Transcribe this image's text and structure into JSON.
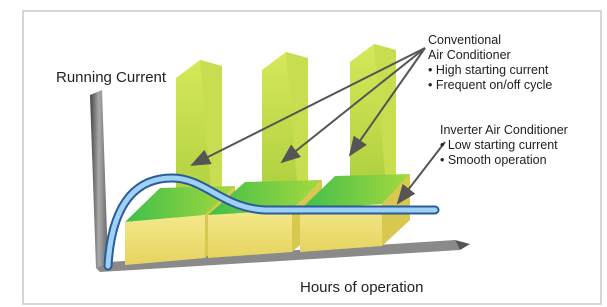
{
  "labels": {
    "y_axis": "Running Current",
    "x_axis": "Hours of operation"
  },
  "conventional": {
    "title": [
      "Conventional",
      "Air Conditioner"
    ],
    "bullets": [
      "• High starting current",
      "• Frequent on/off cycle"
    ]
  },
  "inverter": {
    "title": "Inverter Air Conditioner",
    "bullets": [
      "• Low starting current",
      "• Smooth operation"
    ]
  }
}
